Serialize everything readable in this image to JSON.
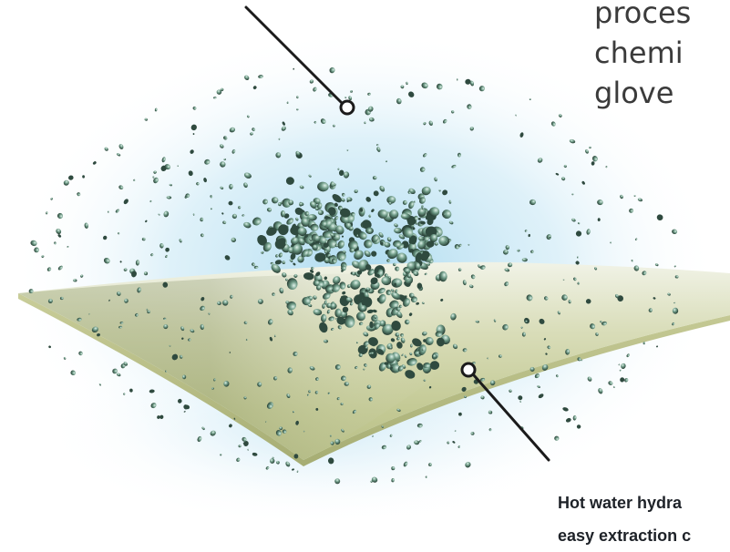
{
  "body_text": {
    "lines": [
      "proces",
      "chemi",
      "glove"
    ]
  },
  "caption": {
    "lines": [
      "Hot water hydra",
      "easy extraction c"
    ]
  },
  "colors": {
    "mist": "#bfe3f3",
    "splash_fill": "#6e9a86",
    "splash_dark": "#2f4a3f",
    "sheet_top": "#eef0e2",
    "sheet_mid": "#cfd3a9",
    "sheet_edge": "#b3ba84",
    "callout_line": "#1b1b1b"
  },
  "icons": [
    "callout-marker-icon",
    "callout-marker-icon"
  ]
}
